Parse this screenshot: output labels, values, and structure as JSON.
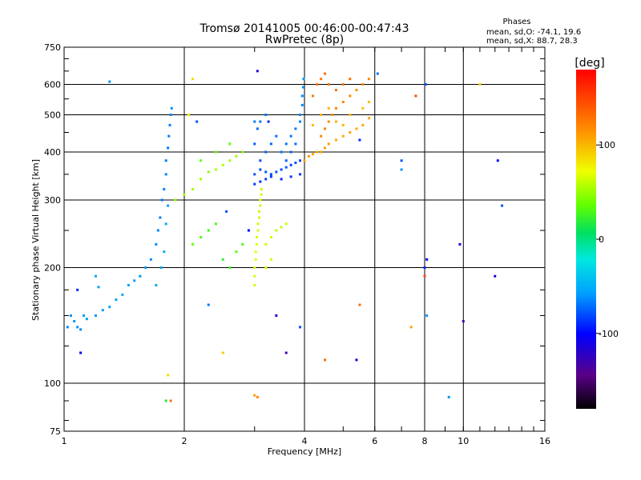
{
  "chart_data": {
    "type": "scatter",
    "title": "Tromsø 20141005 00:46:00-00:47:43",
    "subtitle": "RwPretec (8p)",
    "xlabel": "Frequency [MHz]",
    "ylabel": "Stationary phase Virtual Height [km]",
    "xscale": "log",
    "yscale": "log",
    "xlim": [
      1,
      16
    ],
    "ylim": [
      75,
      750
    ],
    "x_ticks": [
      1,
      2,
      4,
      6,
      8,
      10,
      16
    ],
    "x_tick_labels": [
      "1",
      "2",
      "4",
      "6",
      "8",
      "10",
      "16"
    ],
    "y_ticks": [
      75,
      100,
      200,
      300,
      400,
      500,
      600,
      750
    ],
    "y_tick_labels": [
      "75",
      "100",
      "200",
      "300",
      "400",
      "500",
      "600",
      "750"
    ],
    "grid": true,
    "stats": {
      "heading": "Phases",
      "line_o": "mean, sd,O: -74.1, 19.6",
      "line_x": "mean, sd,X:  88.7, 28.3"
    },
    "colorbar": {
      "unit": "[deg]",
      "range": [
        -180,
        180
      ],
      "tick_values": [
        100,
        0,
        -100
      ],
      "tick_labels": [
        "100",
        "0",
        "-100"
      ]
    },
    "series": [
      {
        "points": [
          [
            1.02,
            140,
            -85
          ],
          [
            1.04,
            150,
            -80
          ],
          [
            1.06,
            145,
            -78
          ],
          [
            1.08,
            140,
            -80
          ],
          [
            1.1,
            138,
            -82
          ],
          [
            1.12,
            150,
            -76
          ],
          [
            1.14,
            147,
            -75
          ],
          [
            1.2,
            150,
            -78
          ],
          [
            1.25,
            155,
            -76
          ],
          [
            1.3,
            158,
            -75
          ],
          [
            1.35,
            165,
            -74
          ],
          [
            1.4,
            170,
            -72
          ],
          [
            1.45,
            180,
            -74
          ],
          [
            1.5,
            185,
            -76
          ],
          [
            1.55,
            190,
            -78
          ],
          [
            1.6,
            200,
            -80
          ],
          [
            1.65,
            210,
            -82
          ],
          [
            1.7,
            230,
            -84
          ],
          [
            1.72,
            250,
            -86
          ],
          [
            1.74,
            270,
            -88
          ],
          [
            1.76,
            300,
            -90
          ],
          [
            1.78,
            320,
            -88
          ],
          [
            1.8,
            350,
            -86
          ],
          [
            1.8,
            380,
            -88
          ],
          [
            1.82,
            410,
            -90
          ],
          [
            1.83,
            440,
            -88
          ],
          [
            1.84,
            470,
            -86
          ],
          [
            1.85,
            500,
            -84
          ],
          [
            1.86,
            520,
            -82
          ],
          [
            1.7,
            180,
            -70
          ],
          [
            1.75,
            200,
            -72
          ],
          [
            1.78,
            220,
            -70
          ],
          [
            1.8,
            260,
            -68
          ],
          [
            1.82,
            290,
            -74
          ],
          [
            1.2,
            190,
            -72
          ],
          [
            1.22,
            178,
            -75
          ],
          [
            1.1,
            120,
            -120
          ],
          [
            1.08,
            175,
            -110
          ]
        ]
      },
      {
        "points": [
          [
            1.9,
            300,
            55
          ],
          [
            2.0,
            310,
            60
          ],
          [
            2.1,
            320,
            58
          ],
          [
            2.2,
            340,
            55
          ],
          [
            2.3,
            355,
            52
          ],
          [
            2.4,
            360,
            60
          ],
          [
            2.5,
            370,
            62
          ],
          [
            2.6,
            380,
            58
          ],
          [
            2.7,
            390,
            55
          ],
          [
            2.8,
            400,
            52
          ],
          [
            2.1,
            230,
            40
          ],
          [
            2.2,
            240,
            35
          ],
          [
            2.3,
            250,
            30
          ],
          [
            2.4,
            260,
            32
          ],
          [
            2.5,
            210,
            28
          ],
          [
            2.6,
            200,
            30
          ],
          [
            2.7,
            220,
            36
          ],
          [
            2.8,
            230,
            34
          ],
          [
            2.2,
            380,
            40
          ],
          [
            2.4,
            400,
            42
          ],
          [
            2.6,
            420,
            38
          ]
        ]
      },
      {
        "points": [
          [
            3.0,
            180,
            70
          ],
          [
            3.0,
            190,
            72
          ],
          [
            3.0,
            200,
            75
          ],
          [
            3.02,
            210,
            72
          ],
          [
            3.02,
            220,
            74
          ],
          [
            3.04,
            230,
            76
          ],
          [
            3.04,
            240,
            72
          ],
          [
            3.06,
            250,
            74
          ],
          [
            3.06,
            260,
            70
          ],
          [
            3.08,
            270,
            72
          ],
          [
            3.08,
            280,
            68
          ],
          [
            3.1,
            290,
            66
          ],
          [
            3.1,
            300,
            70
          ],
          [
            3.12,
            310,
            72
          ],
          [
            3.12,
            320,
            66
          ],
          [
            3.2,
            230,
            70
          ],
          [
            3.3,
            240,
            68
          ],
          [
            3.4,
            250,
            64
          ],
          [
            3.5,
            255,
            66
          ],
          [
            3.6,
            260,
            70
          ],
          [
            3.3,
            210,
            72
          ],
          [
            3.2,
            200,
            74
          ]
        ]
      },
      {
        "points": [
          [
            3.0,
            350,
            -100
          ],
          [
            3.1,
            360,
            -102
          ],
          [
            3.2,
            355,
            -98
          ],
          [
            3.3,
            350,
            -104
          ],
          [
            3.4,
            355,
            -100
          ],
          [
            3.5,
            360,
            -102
          ],
          [
            3.6,
            365,
            -98
          ],
          [
            3.7,
            370,
            -104
          ],
          [
            3.8,
            375,
            -100
          ],
          [
            3.9,
            380,
            -102
          ],
          [
            3.0,
            330,
            -106
          ],
          [
            3.1,
            335,
            -108
          ],
          [
            3.2,
            340,
            -104
          ],
          [
            3.3,
            345,
            -106
          ],
          [
            3.5,
            340,
            -110
          ],
          [
            3.7,
            345,
            -108
          ],
          [
            3.9,
            350,
            -106
          ],
          [
            3.5,
            400,
            -90
          ],
          [
            3.6,
            420,
            -92
          ],
          [
            3.7,
            440,
            -88
          ],
          [
            3.8,
            460,
            -90
          ],
          [
            3.9,
            480,
            -86
          ],
          [
            3.9,
            500,
            -84
          ],
          [
            3.95,
            530,
            -82
          ],
          [
            3.95,
            560,
            -84
          ],
          [
            3.97,
            590,
            -80
          ],
          [
            3.98,
            620,
            -78
          ],
          [
            3.6,
            380,
            -96
          ],
          [
            3.7,
            400,
            -94
          ],
          [
            3.8,
            420,
            -92
          ],
          [
            3.1,
            380,
            -100
          ],
          [
            3.2,
            400,
            -96
          ],
          [
            3.3,
            420,
            -94
          ],
          [
            3.4,
            440,
            -92
          ],
          [
            3.0,
            420,
            -96
          ],
          [
            3.05,
            460,
            -94
          ],
          [
            3.1,
            480,
            -92
          ],
          [
            3.2,
            500,
            -90
          ],
          [
            3.0,
            480,
            -88
          ]
        ]
      },
      {
        "points": [
          [
            4.0,
            380,
            130
          ],
          [
            4.1,
            390,
            132
          ],
          [
            4.2,
            395,
            128
          ],
          [
            4.3,
            400,
            126
          ],
          [
            4.4,
            400,
            130
          ],
          [
            4.5,
            410,
            128
          ],
          [
            4.6,
            420,
            130
          ],
          [
            4.8,
            430,
            126
          ],
          [
            5.0,
            440,
            124
          ],
          [
            5.2,
            450,
            128
          ],
          [
            5.4,
            460,
            126
          ],
          [
            5.6,
            470,
            124
          ],
          [
            5.8,
            490,
            126
          ],
          [
            4.4,
            440,
            140
          ],
          [
            4.5,
            460,
            142
          ],
          [
            4.6,
            480,
            138
          ],
          [
            4.7,
            500,
            136
          ],
          [
            4.8,
            520,
            140
          ],
          [
            5.0,
            540,
            142
          ],
          [
            5.2,
            560,
            138
          ],
          [
            5.4,
            580,
            136
          ],
          [
            5.6,
            600,
            140
          ],
          [
            5.8,
            620,
            138
          ],
          [
            4.2,
            560,
            145
          ],
          [
            4.3,
            600,
            148
          ],
          [
            4.4,
            620,
            146
          ],
          [
            4.5,
            640,
            150
          ],
          [
            4.6,
            600,
            148
          ],
          [
            4.8,
            580,
            150
          ],
          [
            5.0,
            600,
            146
          ],
          [
            5.2,
            620,
            150
          ],
          [
            4.4,
            500,
            120
          ],
          [
            4.6,
            520,
            118
          ],
          [
            4.8,
            480,
            122
          ],
          [
            5.0,
            470,
            120
          ],
          [
            5.2,
            500,
            118
          ],
          [
            4.2,
            470,
            115
          ],
          [
            5.6,
            520,
            112
          ],
          [
            5.8,
            540,
            115
          ]
        ]
      },
      {
        "points": [
          [
            1.3,
            610,
            -80
          ],
          [
            1.85,
            90,
            150
          ],
          [
            1.8,
            90,
            20
          ],
          [
            1.82,
            105,
            100
          ],
          [
            2.05,
            500,
            90
          ],
          [
            2.1,
            620,
            100
          ],
          [
            2.15,
            480,
            -100
          ],
          [
            2.3,
            160,
            -90
          ],
          [
            2.5,
            120,
            110
          ],
          [
            2.55,
            280,
            -100
          ],
          [
            2.9,
            250,
            -120
          ],
          [
            3.05,
            92,
            140
          ],
          [
            3.0,
            93,
            130
          ],
          [
            3.05,
            650,
            -130
          ],
          [
            3.25,
            480,
            -110
          ],
          [
            3.4,
            150,
            -130
          ],
          [
            3.6,
            120,
            -140
          ],
          [
            3.9,
            140,
            -100
          ],
          [
            4.5,
            115,
            150
          ],
          [
            5.4,
            115,
            -130
          ],
          [
            5.5,
            160,
            150
          ],
          [
            6.1,
            640,
            -90
          ],
          [
            7.0,
            380,
            -100
          ],
          [
            7.0,
            360,
            -80
          ],
          [
            7.4,
            140,
            130
          ],
          [
            7.6,
            560,
            160
          ],
          [
            8.0,
            200,
            -110
          ],
          [
            8.0,
            190,
            160
          ],
          [
            8.1,
            210,
            -120
          ],
          [
            8.05,
            600,
            -100
          ],
          [
            8.1,
            150,
            -80
          ],
          [
            9.8,
            230,
            -130
          ],
          [
            10.0,
            145,
            -140
          ],
          [
            11.0,
            600,
            100
          ],
          [
            12.0,
            190,
            -130
          ],
          [
            12.2,
            380,
            -120
          ],
          [
            12.5,
            290,
            -100
          ],
          [
            9.2,
            92,
            -80
          ],
          [
            5.5,
            430,
            -110
          ]
        ]
      }
    ]
  }
}
